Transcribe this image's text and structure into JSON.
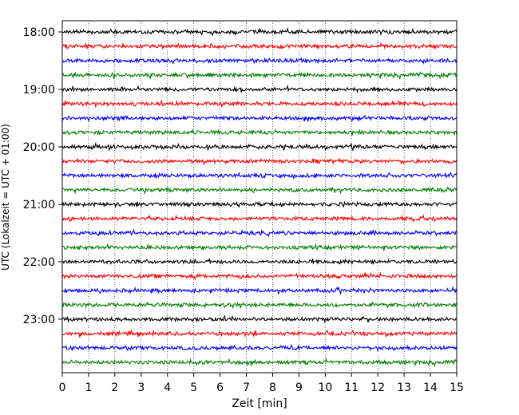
{
  "chart_data": {
    "type": "line",
    "title": "",
    "xlabel": "Zeit  [min]",
    "ylabel": "UTC (Lokalzeit = UTC + 01:00)",
    "xlim": [
      0,
      15
    ],
    "x_ticks": [
      "0",
      "1",
      "2",
      "3",
      "4",
      "5",
      "6",
      "7",
      "8",
      "9",
      "10",
      "11",
      "12",
      "13",
      "14",
      "15"
    ],
    "y_ticks": [
      "18:00",
      "19:00",
      "20:00",
      "21:00",
      "22:00",
      "23:00"
    ],
    "grid": {
      "x": true,
      "style": "dotted"
    },
    "trace_colors": [
      "#000000",
      "#ff0000",
      "#0000ff",
      "#008000"
    ],
    "trace_start_times": [
      "18:00",
      "18:15",
      "18:30",
      "18:45",
      "19:00",
      "19:15",
      "19:30",
      "19:45",
      "20:00",
      "20:15",
      "20:30",
      "20:45",
      "21:00",
      "21:15",
      "21:30",
      "21:45",
      "22:00",
      "22:15",
      "22:30",
      "22:45",
      "23:00",
      "23:15",
      "23:30",
      "23:45"
    ],
    "trace_interval_min": 15
  }
}
